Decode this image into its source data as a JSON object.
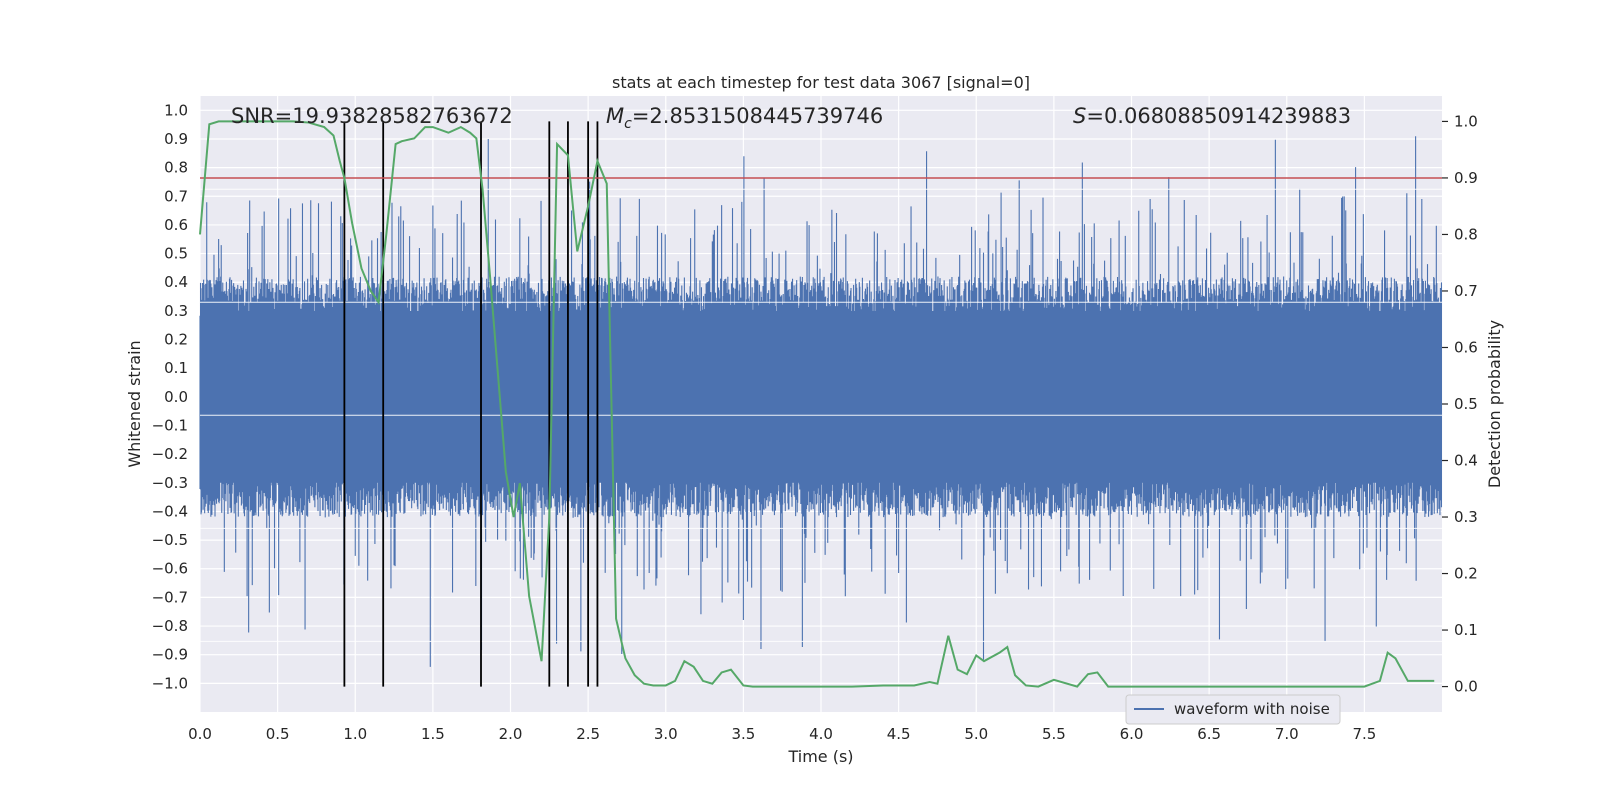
{
  "chart_data": {
    "type": "line",
    "title": "stats at each timestep for test data 3067 [signal=0]",
    "xlabel": "Time (s)",
    "ylabel": "Whitened strain",
    "y2label": "Detection probability",
    "xlim": [
      0.0,
      8.0
    ],
    "ylim": [
      -1.1,
      1.05
    ],
    "y2lim": [
      -0.045,
      1.045
    ],
    "xticks": [
      "0.0",
      "0.5",
      "1.0",
      "1.5",
      "2.0",
      "2.5",
      "3.0",
      "3.5",
      "4.0",
      "4.5",
      "5.0",
      "5.5",
      "6.0",
      "6.5",
      "7.0",
      "7.5"
    ],
    "yticks": [
      "1.0",
      "0.9",
      "0.8",
      "0.7",
      "0.6",
      "0.5",
      "0.4",
      "0.3",
      "0.2",
      "0.1",
      "0.0",
      "-0.1",
      "-0.2",
      "-0.3",
      "-0.4",
      "-0.5",
      "-0.6",
      "-0.7",
      "-0.8",
      "-0.9",
      "-1.0"
    ],
    "y2ticks": [
      "1.0",
      "0.9",
      "0.8",
      "0.7",
      "0.6",
      "0.5",
      "0.4",
      "0.3",
      "0.2",
      "0.1",
      "0.0"
    ],
    "annotations": {
      "snr": "SNR=19.93828582763672",
      "mc_symbol": "M",
      "mc_sub": "c",
      "mc_value": "=2.8531508445739746",
      "s_symbol": "S",
      "s_value": "=0.06808850914239883"
    },
    "threshold": 0.9,
    "event_lines": [
      0.93,
      1.18,
      1.81,
      2.25,
      2.37,
      2.5,
      2.56
    ],
    "waveform_note": "dense noise series approx uniform in [-0.4, 0.4] with spikes to about +/-0.95",
    "detection_probability": {
      "x": [
        0.0,
        0.06,
        0.12,
        0.2,
        0.3,
        0.4,
        0.5,
        0.6,
        0.7,
        0.8,
        0.86,
        0.9,
        0.93,
        0.98,
        1.04,
        1.1,
        1.15,
        1.2,
        1.26,
        1.3,
        1.38,
        1.45,
        1.5,
        1.6,
        1.68,
        1.74,
        1.78,
        1.82,
        1.87,
        1.92,
        1.97,
        2.02,
        2.06,
        2.12,
        2.2,
        2.25,
        2.3,
        2.37,
        2.43,
        2.5,
        2.56,
        2.62,
        2.68,
        2.74,
        2.8,
        2.86,
        2.92,
        3.0,
        3.06,
        3.12,
        3.18,
        3.24,
        3.3,
        3.36,
        3.42,
        3.5,
        3.56,
        3.6,
        3.7,
        3.8,
        3.9,
        4.0,
        4.2,
        4.4,
        4.6,
        4.7,
        4.75,
        4.82,
        4.88,
        4.94,
        5.0,
        5.05,
        5.15,
        5.2,
        5.25,
        5.32,
        5.4,
        5.5,
        5.65,
        5.72,
        5.78,
        5.85,
        5.9,
        6.1,
        6.3,
        6.5,
        6.7,
        6.9,
        7.1,
        7.3,
        7.5,
        7.6,
        7.65,
        7.7,
        7.78,
        7.85,
        7.95
      ],
      "y": [
        0.8,
        0.995,
        1.0,
        1.0,
        1.0,
        1.0,
        1.0,
        1.0,
        0.998,
        0.99,
        0.975,
        0.93,
        0.9,
        0.82,
        0.74,
        0.7,
        0.68,
        0.8,
        0.96,
        0.965,
        0.97,
        0.99,
        0.99,
        0.98,
        0.99,
        0.98,
        0.97,
        0.88,
        0.72,
        0.55,
        0.38,
        0.3,
        0.36,
        0.16,
        0.045,
        0.3,
        0.96,
        0.94,
        0.77,
        0.85,
        0.93,
        0.89,
        0.12,
        0.05,
        0.02,
        0.005,
        0.002,
        0.002,
        0.01,
        0.045,
        0.035,
        0.01,
        0.005,
        0.025,
        0.03,
        0.002,
        0.0,
        0.0,
        0.0,
        0.0,
        0.0,
        0.0,
        0.0,
        0.002,
        0.002,
        0.008,
        0.005,
        0.09,
        0.03,
        0.022,
        0.055,
        0.045,
        0.06,
        0.07,
        0.02,
        0.002,
        0.0,
        0.012,
        0.0,
        0.022,
        0.025,
        0.0,
        0.0,
        0.0,
        0.0,
        0.0,
        0.0,
        0.0,
        0.0,
        0.0,
        0.0,
        0.01,
        0.06,
        0.05,
        0.01,
        0.01,
        0.01
      ]
    },
    "legend": {
      "label": "waveform with noise",
      "placement": "lower-right"
    },
    "colors": {
      "waveform": "#4c72b0",
      "detection": "#55a868",
      "threshold": "#c44e52",
      "events": "#000000",
      "axes_bg": "#eaeaf2",
      "grid": "#ffffff"
    }
  }
}
